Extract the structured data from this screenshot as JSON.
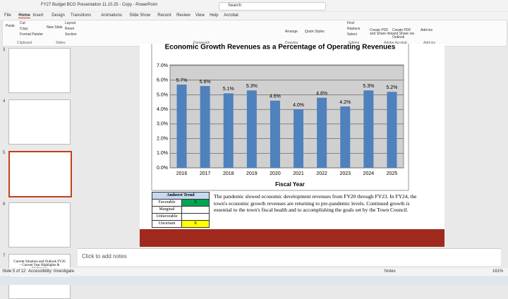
{
  "window": {
    "title": "FY27 Budget BCG Presentation 11.10.25 - Copy - PowerPoint",
    "search": "Search"
  },
  "tabs": [
    "File",
    "Home",
    "Insert",
    "Design",
    "Transitions",
    "Animations",
    "Slide Show",
    "Record",
    "Review",
    "View",
    "Help",
    "Acrobat"
  ],
  "ribbon": {
    "buttons": [
      "Paste",
      "Cut",
      "Copy",
      "Format Painter",
      "New Slide",
      "Layout",
      "Reset",
      "Section",
      "Arrange",
      "Quick Styles",
      "Find",
      "Replace",
      "Select",
      "Create PDF and Share link",
      "Create PDF and Share via Outlook",
      "Add-ins"
    ],
    "groups": [
      "Clipboard",
      "Slides",
      "Paragraph",
      "Drawing",
      "Editing",
      "Adobe Acrobat",
      "Add-ins"
    ]
  },
  "thumbnails": {
    "numbers": [
      "3",
      "4",
      "5",
      "6",
      "7"
    ],
    "slide7_text": "Current Situation and Outlook FY26 – Current Year Highlights & Challenges"
  },
  "slide": {
    "chart_data": {
      "type": "bar",
      "title": "Economic Growth Revenues as a Percentage of Operating Revenues",
      "x_label": "Fiscal Year",
      "categories": [
        "2016",
        "2017",
        "2018",
        "2019",
        "2020",
        "2021",
        "2022",
        "2023",
        "2024",
        "2025"
      ],
      "values": [
        5.7,
        5.6,
        5.1,
        5.3,
        4.6,
        4.0,
        4.8,
        4.2,
        5.3,
        5.2
      ],
      "value_labels": [
        "5.7%",
        "5.6%",
        "5.1%",
        "5.3%",
        "4.6%",
        "4.0%",
        "4.8%",
        "4.2%",
        "5.3%",
        "5.2%"
      ],
      "color": "#4f81bd",
      "ylim": [
        0,
        7
      ],
      "yticks": [
        {
          "value": 0,
          "label": "0.0%"
        },
        {
          "value": 1,
          "label": "1.0%"
        },
        {
          "value": 2,
          "label": "2.0%"
        },
        {
          "value": 3,
          "label": "3.0%"
        },
        {
          "value": 4,
          "label": "4.0%"
        },
        {
          "value": 5,
          "label": "5.0%"
        },
        {
          "value": 6,
          "label": "6.0%"
        },
        {
          "value": 7,
          "label": "7.0%"
        }
      ],
      "grid": true
    },
    "trend": {
      "header": "Amherst Trend",
      "rows": [
        [
          "Favorable",
          "X"
        ],
        [
          "Marginal",
          ""
        ],
        [
          "Unfavorable",
          ""
        ],
        [
          "Uncertain",
          "X"
        ]
      ]
    },
    "text": "The pandemic slowed economic development revenues from FY20 through FY23. In FY24, the town's economic growth revenues are returning to pre-pandemic levels. Continued growth is essential to the town's fiscal health and to accomplishing the goals set by the Town Council."
  },
  "notes": "Click to add notes",
  "status": {
    "slide": "Slide 5 of 12",
    "accessibility": "Accessibility: Investigate",
    "notes": "Notes",
    "zoom": "161%"
  }
}
